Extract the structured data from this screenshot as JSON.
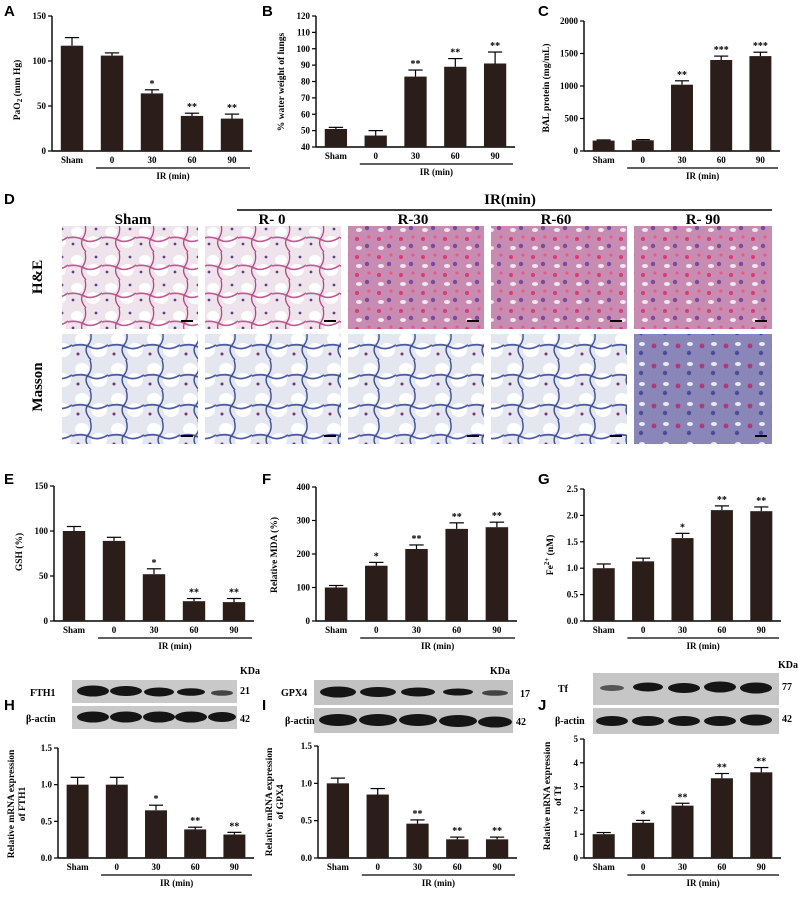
{
  "panels": {
    "A": {
      "label": "A",
      "ylabel_main": "PaO",
      "ylabel_sub": "2",
      "ylabel_rest": " (mm Hg)"
    },
    "B": {
      "label": "B",
      "ylabel": "% water weight of lungs"
    },
    "C": {
      "label": "C",
      "ylabel": "BAL protein (mg/mL)"
    },
    "D": {
      "label": "D",
      "header": "IR(min)",
      "columns": [
        "Sham",
        "R- 0",
        "R-30",
        "R-60",
        "R- 90"
      ],
      "rows": [
        "H&E",
        "Masson"
      ]
    },
    "E": {
      "label": "E",
      "ylabel": "GSH (%)"
    },
    "F": {
      "label": "F",
      "ylabel": "Relative MDA (%)"
    },
    "G": {
      "label": "G",
      "ylabel_main": "Fe",
      "ylabel_sup": "2+",
      "ylabel_rest": " (nM)"
    },
    "H": {
      "label": "H",
      "kda": "KDa",
      "bands": [
        {
          "name": "FTH1",
          "kda": "21"
        },
        {
          "name": "β-actin",
          "kda": "42"
        }
      ],
      "ylabel1": "Relative mRNA expression",
      "ylabel2": "of FTH1"
    },
    "I": {
      "label": "I",
      "kda": "KDa",
      "bands": [
        {
          "name": "GPX4",
          "kda": "17"
        },
        {
          "name": "β-actin",
          "kda": "42"
        }
      ],
      "ylabel1": "Relative mRNA expression",
      "ylabel2": "of GPX4"
    },
    "J": {
      "label": "J",
      "kda": "KDa",
      "bands": [
        {
          "name": "Tf",
          "kda": "77"
        },
        {
          "name": "β-actin",
          "kda": "42"
        }
      ],
      "ylabel1": "Relative mRNA expression",
      "ylabel2": "of Tf"
    }
  },
  "colors": {
    "bar": "#2b1d1a",
    "axis": "#000000",
    "he_bg": "#efe3ec",
    "he_stain": "#c24d8a",
    "masson_bg": "#e6e8f1",
    "masson_stain": "#5a67a8"
  },
  "chart_data": [
    {
      "id": "A",
      "type": "bar",
      "categories": [
        "Sham",
        "0",
        "30",
        "60",
        "90"
      ],
      "xlabel": "IR (min)",
      "values": [
        117,
        106,
        64,
        39,
        36
      ],
      "errors": [
        9,
        3,
        4,
        3,
        5
      ],
      "stars": [
        "",
        "",
        "*",
        "**",
        "**"
      ],
      "ylim": [
        0,
        150
      ],
      "yticks": [
        0,
        50,
        100,
        150
      ]
    },
    {
      "id": "B",
      "type": "bar",
      "categories": [
        "Sham",
        "0",
        "30",
        "60",
        "90"
      ],
      "xlabel": "IR (min)",
      "values": [
        51,
        47,
        83,
        89,
        91
      ],
      "errors": [
        1,
        3,
        4,
        5,
        7
      ],
      "stars": [
        "",
        "",
        "**",
        "**",
        "**"
      ],
      "ylim": [
        40,
        120
      ],
      "yticks": [
        40,
        50,
        60,
        70,
        80,
        90,
        100,
        110,
        120
      ]
    },
    {
      "id": "C",
      "type": "bar",
      "categories": [
        "Sham",
        "0",
        "30",
        "60",
        "90"
      ],
      "xlabel": "IR (min)",
      "values": [
        160,
        165,
        1020,
        1400,
        1460
      ],
      "errors": [
        10,
        10,
        60,
        60,
        60
      ],
      "stars": [
        "",
        "",
        "**",
        "***",
        "***"
      ],
      "ylim": [
        0,
        2000
      ],
      "yticks": [
        0,
        500,
        1000,
        1500,
        2000
      ]
    },
    {
      "id": "E",
      "type": "bar",
      "categories": [
        "Sham",
        "0",
        "30",
        "60",
        "90"
      ],
      "xlabel": "IR (min)",
      "values": [
        100,
        89,
        52,
        22,
        21
      ],
      "errors": [
        5,
        4,
        6,
        3,
        4
      ],
      "stars": [
        "",
        "",
        "*",
        "**",
        "**"
      ],
      "ylim": [
        0,
        150
      ],
      "yticks": [
        0,
        50,
        100,
        150
      ]
    },
    {
      "id": "F",
      "type": "bar",
      "categories": [
        "Sham",
        "0",
        "30",
        "60",
        "90"
      ],
      "xlabel": "IR (min)",
      "values": [
        100,
        165,
        215,
        275,
        280
      ],
      "errors": [
        6,
        10,
        12,
        18,
        15
      ],
      "stars": [
        "",
        "*",
        "**",
        "**",
        "**"
      ],
      "ylim": [
        0,
        400
      ],
      "yticks": [
        0,
        100,
        200,
        300,
        400
      ]
    },
    {
      "id": "G",
      "type": "bar",
      "categories": [
        "Sham",
        "0",
        "30",
        "60",
        "90"
      ],
      "xlabel": "IR (min)",
      "values": [
        1.0,
        1.13,
        1.57,
        2.1,
        2.08
      ],
      "errors": [
        0.08,
        0.06,
        0.09,
        0.08,
        0.08
      ],
      "stars": [
        "",
        "",
        "*",
        "**",
        "**"
      ],
      "ylim": [
        0,
        2.5
      ],
      "yticks": [
        0.0,
        0.5,
        1.0,
        1.5,
        2.0,
        2.5
      ]
    },
    {
      "id": "H",
      "type": "bar",
      "categories": [
        "Sham",
        "0",
        "30",
        "60",
        "90"
      ],
      "xlabel": "IR (min)",
      "values": [
        1.0,
        1.0,
        0.65,
        0.39,
        0.32
      ],
      "errors": [
        0.1,
        0.1,
        0.07,
        0.03,
        0.03
      ],
      "stars": [
        "",
        "",
        "*",
        "**",
        "**"
      ],
      "ylim": [
        0,
        1.5
      ],
      "yticks": [
        0.0,
        0.5,
        1.0,
        1.5
      ]
    },
    {
      "id": "I",
      "type": "bar",
      "categories": [
        "Sham",
        "0",
        "30",
        "60",
        "90"
      ],
      "xlabel": "IR (min)",
      "values": [
        1.0,
        0.85,
        0.46,
        0.25,
        0.25
      ],
      "errors": [
        0.07,
        0.08,
        0.05,
        0.03,
        0.03
      ],
      "stars": [
        "",
        "",
        "**",
        "**",
        "**"
      ],
      "ylim": [
        0,
        1.5
      ],
      "yticks": [
        0.0,
        0.5,
        1.0,
        1.5
      ]
    },
    {
      "id": "J",
      "type": "bar",
      "categories": [
        "Sham",
        "0",
        "30",
        "60",
        "90"
      ],
      "xlabel": "IR (min)",
      "values": [
        1.0,
        1.48,
        2.2,
        3.35,
        3.6
      ],
      "errors": [
        0.07,
        0.1,
        0.1,
        0.2,
        0.2
      ],
      "stars": [
        "",
        "*",
        "**",
        "**",
        "**"
      ],
      "ylim": [
        0,
        5
      ],
      "yticks": [
        0,
        1,
        2,
        3,
        4,
        5
      ]
    }
  ]
}
